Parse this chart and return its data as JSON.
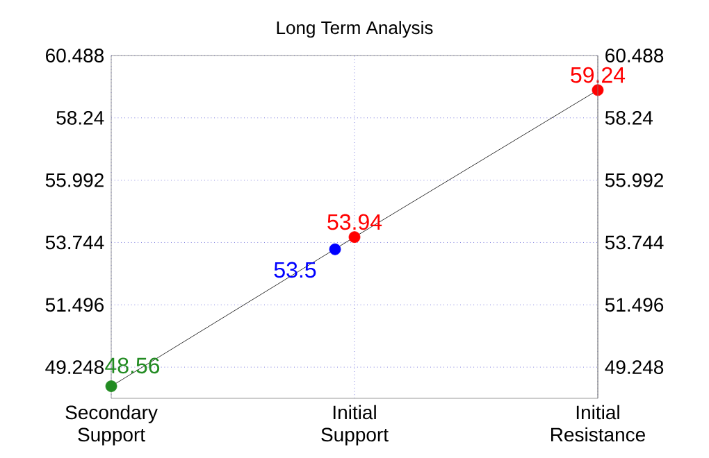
{
  "chart_data": {
    "type": "line",
    "title": "Long Term Analysis",
    "categories": [
      "Secondary Support",
      "Initial Support",
      "Initial Resistance"
    ],
    "series": [
      {
        "color": "#000000",
        "values": [
          48.56,
          53.94,
          59.24
        ],
        "colors": [
          "#228b22",
          "#ff0000",
          "#ff0000"
        ]
      },
      {
        "type": "scatter",
        "values": [
          null,
          53.5,
          null
        ],
        "color": "#0000ff"
      }
    ],
    "ylim": [
      48.124,
      60.488
    ],
    "yticks": [
      60.488,
      58.24,
      55.992,
      53.744,
      51.496,
      49.248
    ],
    "y2lim": [
      48.124,
      60.488
    ],
    "y2ticks": [
      60.488,
      58.24,
      55.992,
      53.744,
      51.496,
      49.248
    ],
    "grid": true,
    "marker": "circle",
    "data_labels": true
  }
}
